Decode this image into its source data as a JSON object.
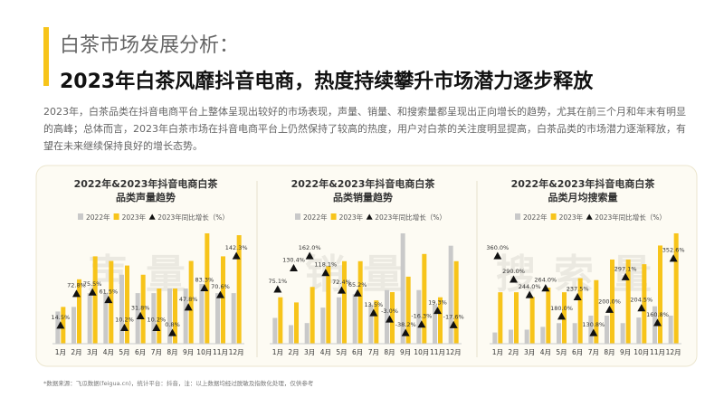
{
  "header": {
    "label": "白茶市场发展分析：",
    "title": "2023年白茶风靡抖音电商，热度持续攀升市场潜力逐步释放",
    "paragraph": "2023年，白茶品类在抖音电商平台上整体呈现出较好的市场表现，声量、销量、和搜索量都呈现出正向增长的趋势，尤其在前三个月和年末有明显的高峰；总体而言，2023年白茶市场在抖音电商平台上仍然保持了较高的热度，用户对白茶的关注度明显提高，白茶品类的市场潜力逐渐释放，有望在未来继续保持良好的增长态势。"
  },
  "chart_data": [
    {
      "type": "bar",
      "title": [
        "2022年&2023年抖音电商白茶",
        "品类声量趋势"
      ],
      "watermark": "声量",
      "categories": [
        "1月",
        "2月",
        "3月",
        "4月",
        "5月",
        "6月",
        "7月",
        "8月",
        "9月",
        "10月",
        "11月",
        "12月"
      ],
      "series": [
        {
          "name": "2022年",
          "color": "#c9c9c9",
          "values": [
            35,
            40,
            55,
            55,
            75,
            55,
            55,
            60,
            60,
            65,
            55,
            55
          ]
        },
        {
          "name": "2023年",
          "color": "#f7c41a",
          "values": [
            40,
            70,
            95,
            90,
            85,
            75,
            60,
            60,
            90,
            120,
            95,
            118
          ]
        },
        {
          "name": "2023年同比增长（%）",
          "color": "#111111",
          "marker": "triangle",
          "values": [
            14.5,
            72.8,
            75.5,
            61.5,
            10.2,
            31.8,
            10.2,
            0.8,
            47.8,
            83.3,
            70.6,
            142.3
          ],
          "value_labels": [
            "14.5%",
            "72.8%",
            "75.5%",
            "61.5%",
            "10.2%",
            "31.8%",
            "10.2%",
            "0.8%",
            "47.8%",
            "83.3%",
            "70.6%",
            "142.3%"
          ]
        }
      ]
    },
    {
      "type": "bar",
      "title": [
        "2022年&2023年抖音电商白茶",
        "品类销量趋势"
      ],
      "watermark": "销量",
      "categories": [
        "1月",
        "2月",
        "3月",
        "4月",
        "5月",
        "6月",
        "7月",
        "8月",
        "9月",
        "10月",
        "11月",
        "12月"
      ],
      "series": [
        {
          "name": "2022年",
          "color": "#c9c9c9",
          "values": [
            25,
            18,
            20,
            35,
            45,
            48,
            38,
            52,
            107,
            52,
            38,
            95
          ]
        },
        {
          "name": "2023年",
          "color": "#f7c41a",
          "values": [
            45,
            40,
            55,
            75,
            80,
            80,
            42,
            50,
            65,
            87,
            45,
            80
          ]
        },
        {
          "name": "2023年同比增长（%）",
          "color": "#111111",
          "marker": "triangle",
          "values": [
            75.1,
            130.4,
            162.0,
            118.1,
            72.4,
            65.2,
            13.5,
            -3.0,
            -38.2,
            -16.3,
            19.3,
            -17.6
          ],
          "value_labels": [
            "75.1%",
            "130.4%",
            "162.0%",
            "118.1%",
            "72.4%",
            "65.2%",
            "13.5%",
            "-3.0%",
            "-38.2%",
            "-16.3%",
            "19.3%",
            "-17.6%"
          ]
        }
      ]
    },
    {
      "type": "bar",
      "title": [
        "2022年&2023年抖音电商白茶",
        "品类月均搜索量"
      ],
      "watermark": "搜索量",
      "categories": [
        "1月",
        "2月",
        "3月",
        "4月",
        "5月",
        "6月",
        "7月",
        "8月",
        "9月",
        "10月",
        "11月",
        "12月"
      ],
      "series": [
        {
          "name": "2022年",
          "color": "#c9c9c9",
          "values": [
            12,
            15,
            15,
            18,
            22,
            22,
            30,
            30,
            22,
            28,
            40,
            30
          ]
        },
        {
          "name": "2023年",
          "color": "#f7c41a",
          "values": [
            55,
            55,
            50,
            60,
            55,
            70,
            68,
            90,
            90,
            85,
            105,
            118
          ]
        },
        {
          "name": "2023年同比增长（%）",
          "color": "#111111",
          "marker": "triangle",
          "values": [
            360.0,
            290.0,
            244.0,
            264.0,
            180.0,
            237.5,
            130.8,
            200.0,
            297.1,
            204.5,
            160.8,
            352.6
          ],
          "value_labels": [
            "360.0%",
            "290.0%",
            "244.0%",
            "264.0%",
            "180.0%",
            "237.5%",
            "130.8%",
            "200.0%",
            "297.1%",
            "204.5%",
            "160.8%",
            "352.6%"
          ]
        }
      ]
    }
  ],
  "footnote": "*数据来源：飞瓜数据(feigua.cn)，统计平台：抖音，注：以上数据均经过脱敏及指数化处理，仅供参考"
}
